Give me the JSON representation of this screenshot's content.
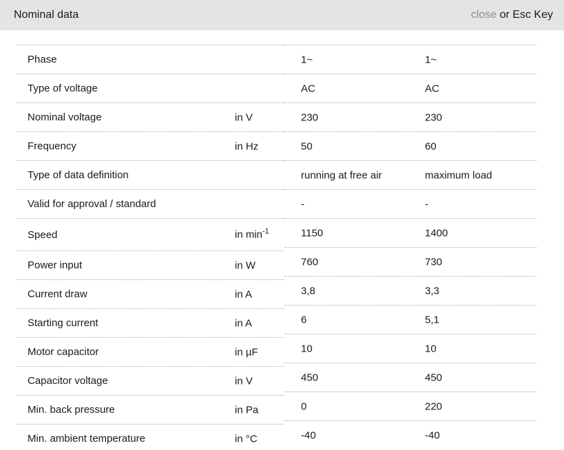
{
  "header": {
    "title": "Nominal data",
    "close_label": "close",
    "close_suffix": " or Esc Key"
  },
  "table": {
    "rows": [
      {
        "label": "Phase",
        "unit": "",
        "unit_sup": "",
        "value1": "1~",
        "value2": "1~"
      },
      {
        "label": "Type of voltage",
        "unit": "",
        "unit_sup": "",
        "value1": "AC",
        "value2": "AC"
      },
      {
        "label": "Nominal voltage",
        "unit": "in V",
        "unit_sup": "",
        "value1": "230",
        "value2": "230"
      },
      {
        "label": "Frequency",
        "unit": "in Hz",
        "unit_sup": "",
        "value1": "50",
        "value2": "60"
      },
      {
        "label": "Type of data definition",
        "unit": "",
        "unit_sup": "",
        "value1": "running at free air",
        "value2": "maximum load"
      },
      {
        "label": "Valid for approval / standard",
        "unit": "",
        "unit_sup": "",
        "value1": "-",
        "value2": "-"
      },
      {
        "label": "Speed",
        "unit": "in min",
        "unit_sup": "-1",
        "value1": "1150",
        "value2": "1400"
      },
      {
        "label": "Power input",
        "unit": "in W",
        "unit_sup": "",
        "value1": "760",
        "value2": "730"
      },
      {
        "label": "Current draw",
        "unit": "in A",
        "unit_sup": "",
        "value1": "3,8",
        "value2": "3,3"
      },
      {
        "label": "Starting current",
        "unit": "in A",
        "unit_sup": "",
        "value1": "6",
        "value2": "5,1"
      },
      {
        "label": "Motor capacitor",
        "unit": "in µF",
        "unit_sup": "",
        "value1": "10",
        "value2": "10"
      },
      {
        "label": "Capacitor voltage",
        "unit": "in V",
        "unit_sup": "",
        "value1": "450",
        "value2": "450"
      },
      {
        "label": "Min. back pressure",
        "unit": "in Pa",
        "unit_sup": "",
        "value1": "0",
        "value2": "220"
      },
      {
        "label": "Min. ambient temperature",
        "unit": "in °C",
        "unit_sup": "",
        "value1": "-40",
        "value2": "-40"
      }
    ]
  },
  "colors": {
    "header-bg": "#e4e4e4",
    "text": "#1a1a1a",
    "close-color": "#8c8c8c",
    "border": "#a9a9a9"
  }
}
